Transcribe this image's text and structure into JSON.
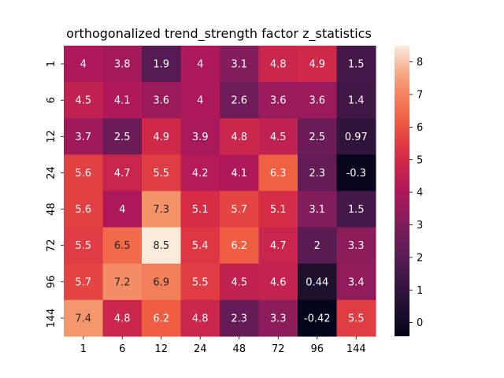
{
  "chart_data": {
    "type": "heatmap",
    "title": "orthogonalized trend_strength factor z_statistics",
    "xlabel": "",
    "ylabel": "",
    "x_categories": [
      "1",
      "6",
      "12",
      "24",
      "48",
      "72",
      "96",
      "144"
    ],
    "y_categories": [
      "1",
      "6",
      "12",
      "24",
      "48",
      "72",
      "96",
      "144"
    ],
    "values": [
      [
        4,
        3.8,
        1.9,
        4,
        3.1,
        4.8,
        4.9,
        1.5
      ],
      [
        4.5,
        4.1,
        3.6,
        4,
        2.6,
        3.6,
        3.6,
        1.4
      ],
      [
        3.7,
        2.5,
        4.9,
        3.9,
        4.8,
        4.5,
        2.5,
        0.97
      ],
      [
        5.6,
        4.7,
        5.5,
        4.2,
        4.1,
        6.3,
        2.3,
        -0.3
      ],
      [
        5.6,
        4,
        7.3,
        5.1,
        5.7,
        5.1,
        3.1,
        1.5
      ],
      [
        5.5,
        6.5,
        8.5,
        5.4,
        6.2,
        4.7,
        2,
        3.3
      ],
      [
        5.7,
        7.2,
        6.9,
        5.5,
        4.5,
        4.6,
        0.44,
        3.4
      ],
      [
        7.4,
        4.8,
        6.2,
        4.8,
        2.3,
        3.3,
        -0.42,
        5.5
      ]
    ],
    "colorbar": {
      "min": -0.42,
      "max": 8.5,
      "ticks": [
        0,
        1,
        2,
        3,
        4,
        5,
        6,
        7,
        8
      ]
    },
    "colormap": "rocket"
  }
}
